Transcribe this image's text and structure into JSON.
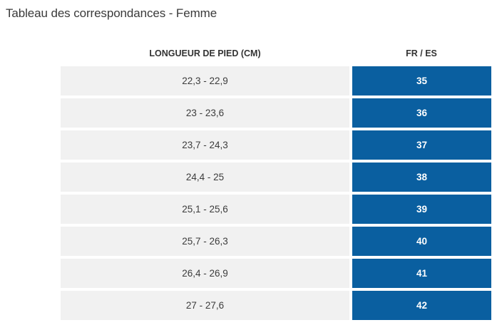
{
  "title": "Tableau des correspondances - Femme",
  "table": {
    "headers": [
      "LONGUEUR DE PIED (CM)",
      "FR / ES"
    ],
    "rows": [
      {
        "length": "22,3 - 22,9",
        "size": "35"
      },
      {
        "length": "23 - 23,6",
        "size": "36"
      },
      {
        "length": "23,7 - 24,3",
        "size": "37"
      },
      {
        "length": "24,4 - 25",
        "size": "38"
      },
      {
        "length": "25,1 - 25,6",
        "size": "39"
      },
      {
        "length": "25,7 - 26,3",
        "size": "40"
      },
      {
        "length": "26,4 - 26,9",
        "size": "41"
      },
      {
        "length": "27 - 27,6",
        "size": "42"
      }
    ]
  },
  "colors": {
    "accent": "#0a5fa0",
    "row_background": "#f1f1f1"
  }
}
